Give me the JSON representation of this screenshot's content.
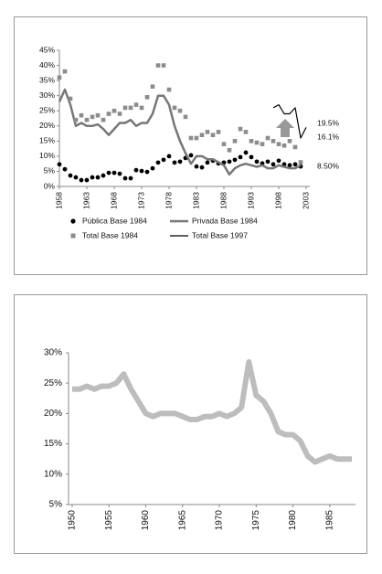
{
  "chart_data": [
    {
      "type": "line",
      "x": [
        1958,
        1959,
        1960,
        1961,
        1962,
        1963,
        1964,
        1965,
        1966,
        1967,
        1968,
        1969,
        1970,
        1971,
        1972,
        1973,
        1974,
        1975,
        1976,
        1977,
        1978,
        1979,
        1980,
        1981,
        1982,
        1983,
        1984,
        1985,
        1986,
        1987,
        1988,
        1989,
        1990,
        1991,
        1992,
        1993,
        1994,
        1995,
        1996,
        1997,
        1998,
        1999,
        2000,
        2001,
        2002,
        2003
      ],
      "xlim": [
        1958,
        2003
      ],
      "xticks": [
        1958,
        1963,
        1968,
        1973,
        1978,
        1983,
        1988,
        1993,
        1998,
        2003
      ],
      "ylim": [
        0,
        45
      ],
      "yticks": [
        {
          "value": 0,
          "label": "0%"
        },
        {
          "value": 5,
          "label": "5%"
        },
        {
          "value": 10,
          "label": "10%"
        },
        {
          "value": 15,
          "label": "15%"
        },
        {
          "value": 20,
          "label": "20%"
        },
        {
          "value": 25,
          "label": "25%"
        },
        {
          "value": 30,
          "label": "30%"
        },
        {
          "value": 35,
          "label": "35%"
        },
        {
          "value": 40,
          "label": "40%"
        },
        {
          "value": 45,
          "label": "45%"
        }
      ],
      "series": [
        {
          "name": "Pública Base 1984",
          "color": "#000000",
          "style": "markers",
          "marker": "circle",
          "values": [
            7.3,
            5.7,
            3.6,
            3,
            2.1,
            2.1,
            3,
            3,
            3.6,
            4.5,
            4.5,
            4.2,
            2.7,
            2.7,
            5.4,
            5.1,
            4.8,
            6,
            7.9,
            8.8,
            10,
            7.9,
            8.2,
            9.4,
            10.3,
            6.6,
            6.3,
            7.9,
            8.5,
            7.6,
            7.9,
            8.2,
            8.8,
            9.7,
            11.2,
            9.7,
            8.2,
            7.6,
            8.2,
            7.3,
            8.5,
            7.3,
            7,
            7.3,
            6.6,
            null
          ]
        },
        {
          "name": "Privada Base 1984",
          "color": "#777777",
          "style": "line",
          "width": 2.5,
          "values": [
            28,
            32,
            27,
            20,
            21,
            20,
            20,
            20.5,
            19,
            17,
            19,
            21,
            21,
            22,
            20,
            21,
            21,
            24,
            30,
            30,
            27,
            20,
            15,
            11,
            7.5,
            10,
            10,
            9,
            9,
            8,
            7,
            4,
            6,
            7,
            7.5,
            7,
            6.5,
            7,
            6,
            6,
            7,
            6.5,
            6,
            6,
            7,
            null
          ]
        },
        {
          "name": "Total Base 1984",
          "color": "#8c8c8c",
          "style": "markers",
          "marker": "square",
          "values": [
            36,
            38,
            29,
            22,
            23.5,
            22,
            23,
            23.5,
            22,
            24,
            25,
            24,
            26,
            26,
            27,
            26,
            29.5,
            33,
            40,
            40,
            32,
            26,
            25,
            23,
            16,
            16,
            17,
            18,
            17,
            18,
            14,
            12,
            15,
            19,
            18,
            15,
            14.5,
            14,
            16,
            15,
            14,
            13.5,
            15,
            13,
            8,
            null
          ]
        },
        {
          "name": "Total Base 1997",
          "color": "#000000",
          "style": "line",
          "width": 1.2,
          "values": [
            null,
            null,
            null,
            null,
            null,
            null,
            null,
            null,
            null,
            null,
            null,
            null,
            null,
            null,
            null,
            null,
            null,
            null,
            null,
            null,
            null,
            null,
            null,
            null,
            null,
            null,
            null,
            null,
            null,
            null,
            null,
            null,
            null,
            null,
            null,
            null,
            null,
            null,
            null,
            26,
            27,
            24,
            24,
            26,
            16,
            19.5
          ]
        }
      ],
      "annotations": [
        "19.5%",
        "16.1%",
        "8.50%"
      ],
      "legend": "bottom"
    },
    {
      "type": "line",
      "x": [
        1950,
        1951,
        1952,
        1953,
        1954,
        1955,
        1956,
        1957,
        1958,
        1959,
        1960,
        1961,
        1962,
        1963,
        1964,
        1965,
        1966,
        1967,
        1968,
        1969,
        1970,
        1971,
        1972,
        1973,
        1974,
        1975,
        1976,
        1977,
        1978,
        1979,
        1980,
        1981,
        1982,
        1983,
        1984,
        1985,
        1986,
        1987,
        1988
      ],
      "xlim": [
        1950,
        1988
      ],
      "xticks": [
        1950,
        1955,
        1960,
        1965,
        1970,
        1975,
        1980,
        1985
      ],
      "ylim": [
        5,
        30
      ],
      "yticks": [
        {
          "value": 5,
          "label": "5%"
        },
        {
          "value": 10,
          "label": "10%"
        },
        {
          "value": 15,
          "label": "15%"
        },
        {
          "value": 20,
          "label": "20%"
        },
        {
          "value": 25,
          "label": "25%"
        },
        {
          "value": 30,
          "label": "30%"
        }
      ],
      "series": [
        {
          "color": "#bdbdbd",
          "style": "line",
          "width": 6,
          "values": [
            24,
            24,
            24.5,
            24,
            24.5,
            24.5,
            25,
            26.5,
            24,
            22,
            20,
            19.5,
            20,
            20,
            20,
            19.5,
            19,
            19,
            19.5,
            19.5,
            20,
            19.5,
            20,
            21,
            28.5,
            23,
            22,
            20,
            17,
            16.5,
            16.5,
            15.5,
            13,
            12,
            12.5,
            13,
            12.5,
            12.5,
            12.5
          ]
        }
      ]
    }
  ]
}
